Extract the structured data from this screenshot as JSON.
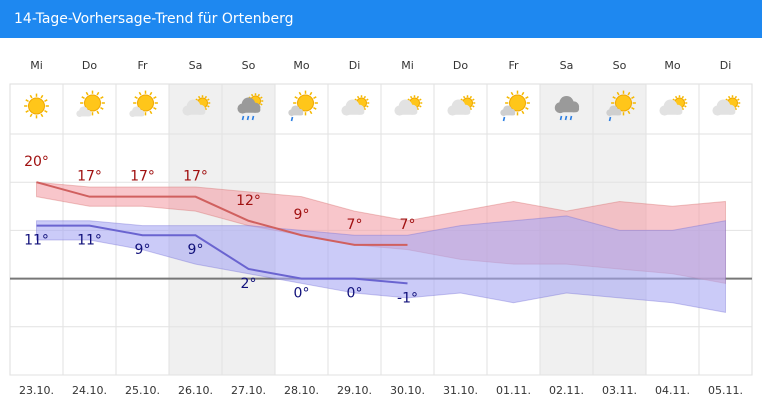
{
  "header": {
    "title": "14-Tage-Vorhersage-Trend für Ortenberg"
  },
  "chart_data": {
    "type": "line",
    "categories": [
      "Mi",
      "Do",
      "Fr",
      "Sa",
      "So",
      "Mo",
      "Di",
      "Mi",
      "Do",
      "Fr",
      "Sa",
      "So",
      "Mo",
      "Di"
    ],
    "x": [
      "23.10.",
      "24.10.",
      "25.10.",
      "26.10.",
      "27.10.",
      "28.10.",
      "29.10.",
      "30.10.",
      "31.10.",
      "01.11.",
      "02.11.",
      "03.11.",
      "04.11.",
      "05.11."
    ],
    "ylim": [
      -20,
      30
    ],
    "yticks": [
      -20,
      -10,
      0,
      10,
      20,
      30
    ],
    "grid": true,
    "series": [
      {
        "color": "#d0605f",
        "label_color": "#a01010",
        "range_color": "#f4a0a8",
        "values": [
          20,
          17,
          17,
          17,
          12,
          9,
          7,
          7,
          null,
          null,
          null,
          null,
          null,
          null
        ],
        "value_labels": [
          "20°",
          "17°",
          "17°",
          "17°",
          "12°",
          "9°",
          "7°",
          "7°",
          null,
          null,
          null,
          null,
          null,
          null
        ],
        "range_high": [
          20,
          19,
          19,
          19,
          18,
          17,
          14,
          12,
          14,
          16,
          14,
          16,
          15,
          16
        ],
        "range_low": [
          17,
          15,
          15,
          14,
          11,
          9,
          7,
          6,
          4,
          3,
          3,
          2,
          1,
          -1
        ]
      },
      {
        "color": "#6a64d0",
        "label_color": "#10107a",
        "range_color": "#a8a8f4",
        "values": [
          11,
          11,
          9,
          9,
          2,
          0,
          0,
          -1,
          null,
          null,
          null,
          null,
          null,
          null
        ],
        "value_labels": [
          "11°",
          "11°",
          "9°",
          "9°",
          "2°",
          "0°",
          "0°",
          "-1°",
          null,
          null,
          null,
          null,
          null,
          null
        ],
        "range_high": [
          12,
          12,
          11,
          11,
          11,
          10,
          9,
          9,
          11,
          12,
          13,
          10,
          10,
          12
        ],
        "range_low": [
          8,
          8,
          6,
          3,
          1,
          -1,
          -3,
          -4,
          -3,
          -5,
          -3,
          -4,
          -5,
          -7
        ]
      }
    ]
  }
}
